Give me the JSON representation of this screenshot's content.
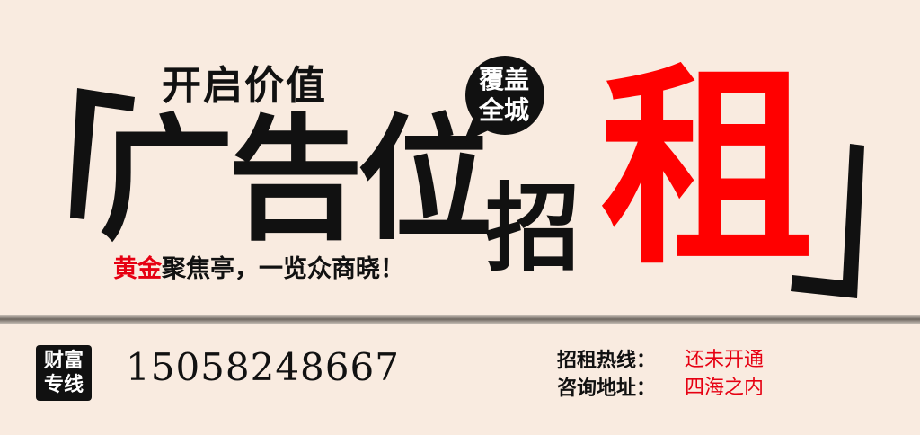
{
  "banner": {
    "subtitle": "开启价值",
    "main_title": "广告位",
    "title_zhao": "招",
    "title_zu": "租",
    "bubble_line1": "覆盖",
    "bubble_line2": "全城",
    "tagline_highlight": "黄金",
    "tagline_rest": "聚焦亭，一览众商晓！"
  },
  "footer": {
    "badge_line1": "财富",
    "badge_line2": "专线",
    "phone": "15058248667",
    "hotline_label": "招租热线：",
    "hotline_value": "还未开通",
    "address_label": "咨询地址：",
    "address_value": "四海之内"
  },
  "colors": {
    "background": "#f9ebe0",
    "accent_red": "#ff0000",
    "text_dark": "#111111"
  }
}
